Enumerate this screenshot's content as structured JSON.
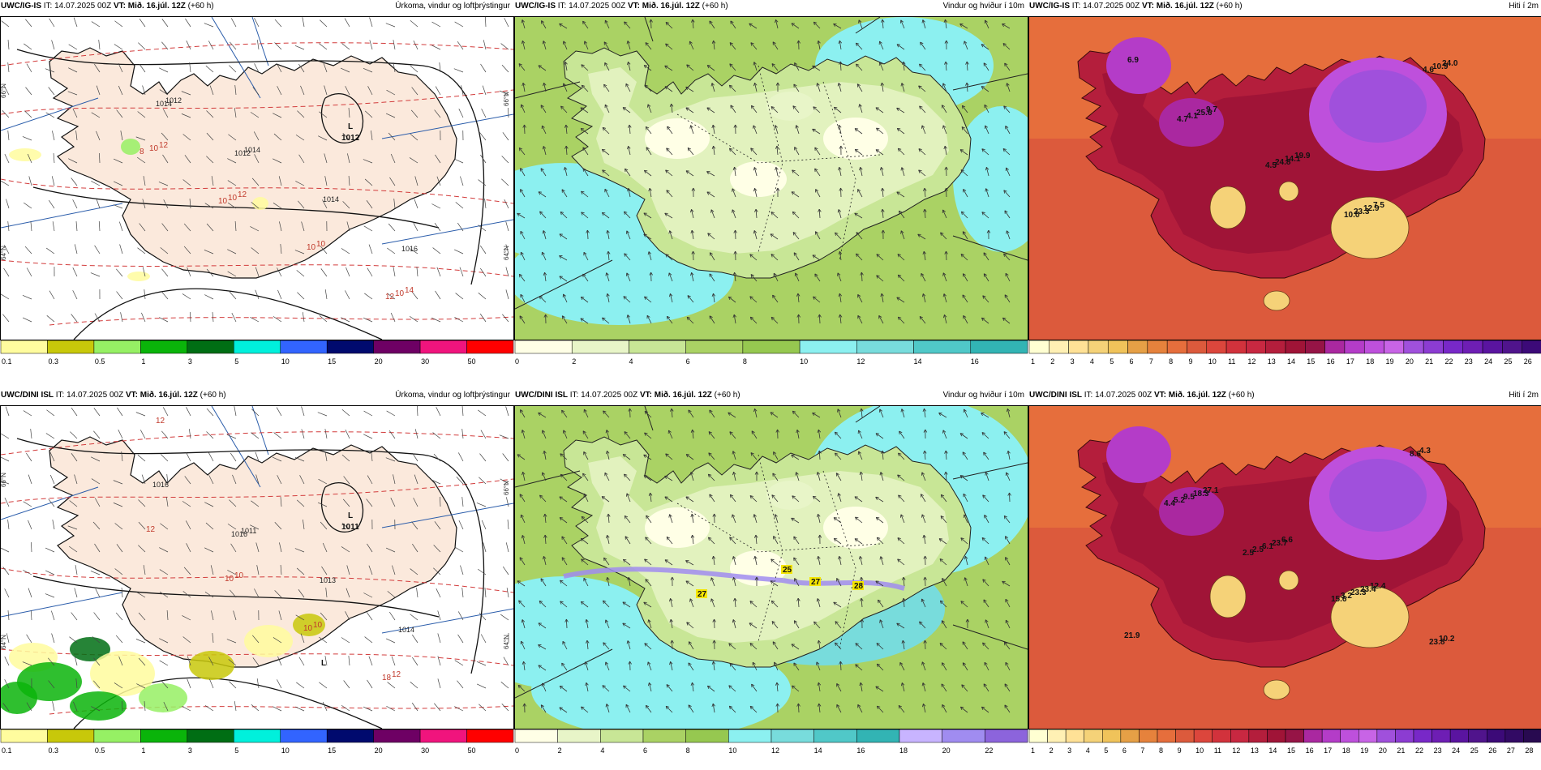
{
  "colors": {
    "precip_scale": [
      "#fffc9e",
      "#c8c80a",
      "#96f064",
      "#0ab40a",
      "#006e14",
      "#00f0dc",
      "#3264ff",
      "#000a6e",
      "#6e0064",
      "#f0147d",
      "#ff0000"
    ],
    "wind_scale": [
      "#ffffe6",
      "#e8f5c8",
      "#c8e696",
      "#aad264",
      "#96c850",
      "#8cf0f0",
      "#78dcdc",
      "#50c8c8",
      "#32b4b4",
      "#c8b4ff",
      "#a08cf0",
      "#8c64dc"
    ],
    "temp_scale": [
      "#ffffd2",
      "#fff0b4",
      "#ffe196",
      "#f5d278",
      "#f0c35a",
      "#e6a046",
      "#e6823c",
      "#e66e3c",
      "#dc5a3c",
      "#dc463c",
      "#d2323c",
      "#c82841",
      "#b41e3c",
      "#a01437",
      "#961446",
      "#aa28a0",
      "#b43cc8",
      "#be50dc",
      "#c864e6",
      "#a050dc",
      "#8c3cd2",
      "#7828c8",
      "#6e1eb4",
      "#5a14a0",
      "#50148c",
      "#3c0a78",
      "#320a64",
      "#280a50"
    ],
    "land_fill": "#fbe9dc",
    "ocean_fill": "#ffffff",
    "contour_red": "#d23c3c",
    "wind_bg_ocean": "#c8e696"
  },
  "panels": [
    {
      "id": "ig-precip",
      "model": "UWC/IG-IS",
      "it_label": "IT:",
      "it_value": "14.07.2025 00Z",
      "vt_label": "VT:",
      "vt_value": "Mið. 16.júl. 12Z",
      "lead": "(+60 h)",
      "product": "Úrkoma, vindur og loftþrýstingur",
      "kind": "precip",
      "colorbar_labels": [
        "0.1",
        "0.3",
        "0.5",
        "1",
        "3",
        "5",
        "10",
        "15",
        "20",
        "30",
        "50"
      ],
      "pressure_labels": [
        "1012",
        "1014",
        "1014",
        "1016",
        "1014",
        "1012"
      ],
      "low_label": "L",
      "low_value": "1012",
      "iso_labels": [
        "14",
        "12",
        "12",
        "10",
        "10",
        "10",
        "10",
        "10",
        "12",
        "8",
        "10"
      ],
      "lat_labels": [
        "66°N",
        "64°N",
        "66°N",
        "64°N"
      ]
    },
    {
      "id": "ig-wind",
      "model": "UWC/IG-IS",
      "it_label": "IT:",
      "it_value": "14.07.2025 00Z",
      "vt_label": "VT:",
      "vt_value": "Mið. 16.júl. 12Z",
      "lead": "(+60 h)",
      "product": "Vindur og hviður í 10m",
      "kind": "wind",
      "colorbar_labels": [
        "0",
        "2",
        "4",
        "6",
        "8",
        "10",
        "12",
        "14",
        "16"
      ],
      "values": []
    },
    {
      "id": "ig-temp",
      "model": "UWC/IG-IS",
      "it_label": "IT:",
      "it_value": "14.07.2025 00Z",
      "vt_label": "VT:",
      "vt_value": "Mið. 16.júl. 12Z",
      "lead": "(+60 h)",
      "product": "Hiti í 2m",
      "kind": "temp",
      "colorbar_labels": [
        "1",
        "2",
        "3",
        "4",
        "5",
        "6",
        "7",
        "8",
        "9",
        "10",
        "11",
        "12",
        "13",
        "14",
        "15",
        "16",
        "17",
        "18",
        "19",
        "20",
        "21",
        "22",
        "23",
        "24",
        "25",
        "26"
      ],
      "values": [
        "19.9",
        "7.5",
        "6.9",
        "9.7",
        "14.1",
        "12.9",
        "24.0",
        "25.6",
        "24.8",
        "23.3",
        "10.9",
        "4.1",
        "4.5",
        "10.0",
        "4.6",
        "4.7"
      ]
    },
    {
      "id": "dini-precip",
      "model": "UWC/DINI ISL",
      "it_label": "IT:",
      "it_value": "14.07.2025 00Z",
      "vt_label": "VT:",
      "vt_value": "Mið. 16.júl. 12Z",
      "lead": "(+60 h)",
      "product": "Úrkoma, vindur og loftþrýstingur",
      "kind": "precip",
      "colorbar_labels": [
        "0.1",
        "0.3",
        "0.5",
        "1",
        "3",
        "5",
        "10",
        "15",
        "20",
        "30",
        "50"
      ],
      "pressure_labels": [
        "1011",
        "1013",
        "1014",
        "1016",
        "1016"
      ],
      "low_label": "L",
      "low_value": "1011",
      "low2_label": "L",
      "iso_labels": [
        "12",
        "10",
        "10",
        "12",
        "12",
        "10",
        "10",
        "18"
      ],
      "lat_labels": [
        "66°N",
        "64°N",
        "66°N",
        "64°N"
      ]
    },
    {
      "id": "dini-wind",
      "model": "UWC/DINI ISL",
      "it_label": "IT:",
      "it_value": "14.07.2025 00Z",
      "vt_label": "VT:",
      "vt_value": "Mið. 16.júl. 12Z",
      "lead": "(+60 h)",
      "product": "Vindur og hviður í 10m",
      "kind": "wind",
      "colorbar_labels": [
        "0",
        "2",
        "4",
        "6",
        "8",
        "10",
        "12",
        "14",
        "16",
        "18",
        "20",
        "22"
      ],
      "values": [
        "25",
        "27",
        "27",
        "28"
      ]
    },
    {
      "id": "dini-temp",
      "model": "UWC/DINI ISL",
      "it_label": "IT:",
      "it_value": "14.07.2025 00Z",
      "vt_label": "VT:",
      "vt_value": "Mið. 16.júl. 12Z",
      "lead": "(+60 h)",
      "product": "Hiti í 2m",
      "kind": "temp",
      "colorbar_labels": [
        "1",
        "2",
        "3",
        "4",
        "5",
        "6",
        "7",
        "8",
        "9",
        "10",
        "11",
        "12",
        "13",
        "14",
        "15",
        "16",
        "17",
        "18",
        "19",
        "20",
        "21",
        "22",
        "23",
        "24",
        "25",
        "26",
        "27",
        "28"
      ],
      "values": [
        "12.4",
        "21.9",
        "27.1",
        "6.6",
        "23.4",
        "10.2",
        "18.3",
        "23.7",
        "23.3",
        "23.8",
        "9.5",
        "6.1",
        "3.2",
        "4.3",
        "5.2",
        "2.5",
        "15.6",
        "8.6",
        "4.4",
        "2.5"
      ]
    }
  ]
}
